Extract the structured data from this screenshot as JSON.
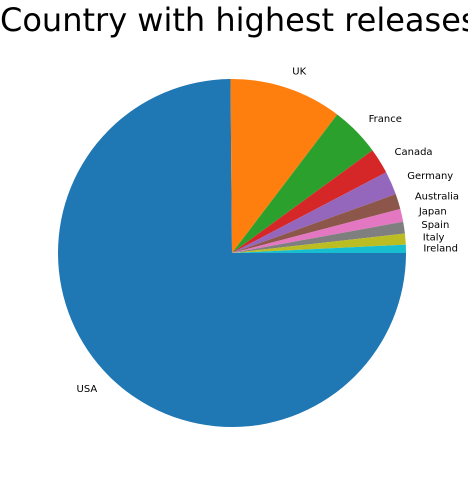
{
  "chart_data": {
    "type": "pie",
    "title": "Country with highest releases",
    "categories": [
      "USA",
      "UK",
      "France",
      "Canada",
      "Germany",
      "Australia",
      "Japan",
      "Spain",
      "Italy",
      "Ireland"
    ],
    "values": [
      2058,
      288,
      127,
      65,
      60,
      39,
      33,
      30,
      28,
      21
    ],
    "colors": [
      "#1f77b4",
      "#ff7f0e",
      "#2ca02c",
      "#d62728",
      "#9467bd",
      "#8c564b",
      "#e377c2",
      "#7f7f7f",
      "#bcbd22",
      "#17becf"
    ],
    "start_angle_deg": 0,
    "direction": "clockwise"
  }
}
